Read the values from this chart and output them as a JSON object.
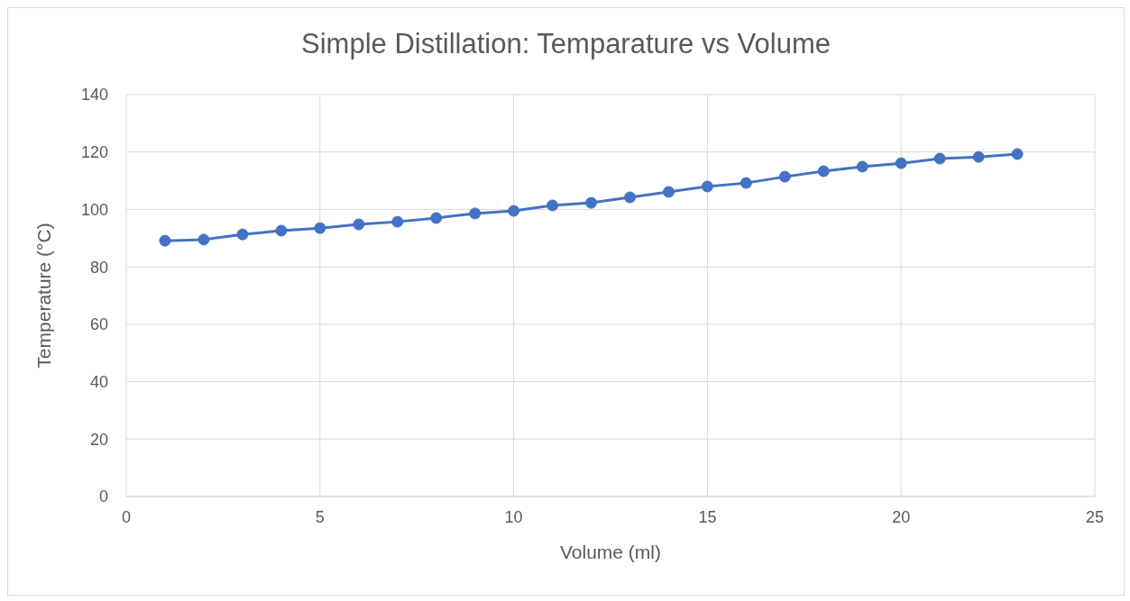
{
  "chart_data": {
    "type": "line",
    "title": "Simple Distillation: Temparature vs Volume",
    "xlabel": "Volume (ml)",
    "ylabel": "Temperature (°C)",
    "x": [
      1,
      2,
      3,
      4,
      5,
      6,
      7,
      8,
      9,
      10,
      11,
      12,
      13,
      14,
      15,
      16,
      17,
      18,
      19,
      20,
      21,
      22,
      23
    ],
    "series": [
      {
        "color": "#4472c4",
        "values": [
          89.1,
          89.5,
          91.3,
          92.6,
          93.5,
          94.8,
          95.7,
          97.0,
          98.6,
          99.5,
          101.4,
          102.3,
          104.2,
          106.1,
          108.0,
          109.2,
          111.4,
          113.3,
          114.9,
          116.1,
          117.7,
          118.3,
          119.3
        ]
      }
    ],
    "xlim": [
      0,
      25
    ],
    "xticks": [
      0,
      5,
      10,
      15,
      20,
      25
    ],
    "ylim": [
      0,
      140
    ],
    "yticks": [
      0,
      20,
      40,
      60,
      80,
      100,
      120,
      140
    ],
    "grid": true,
    "legend": false,
    "marker": "circle",
    "line_style": "solid"
  }
}
